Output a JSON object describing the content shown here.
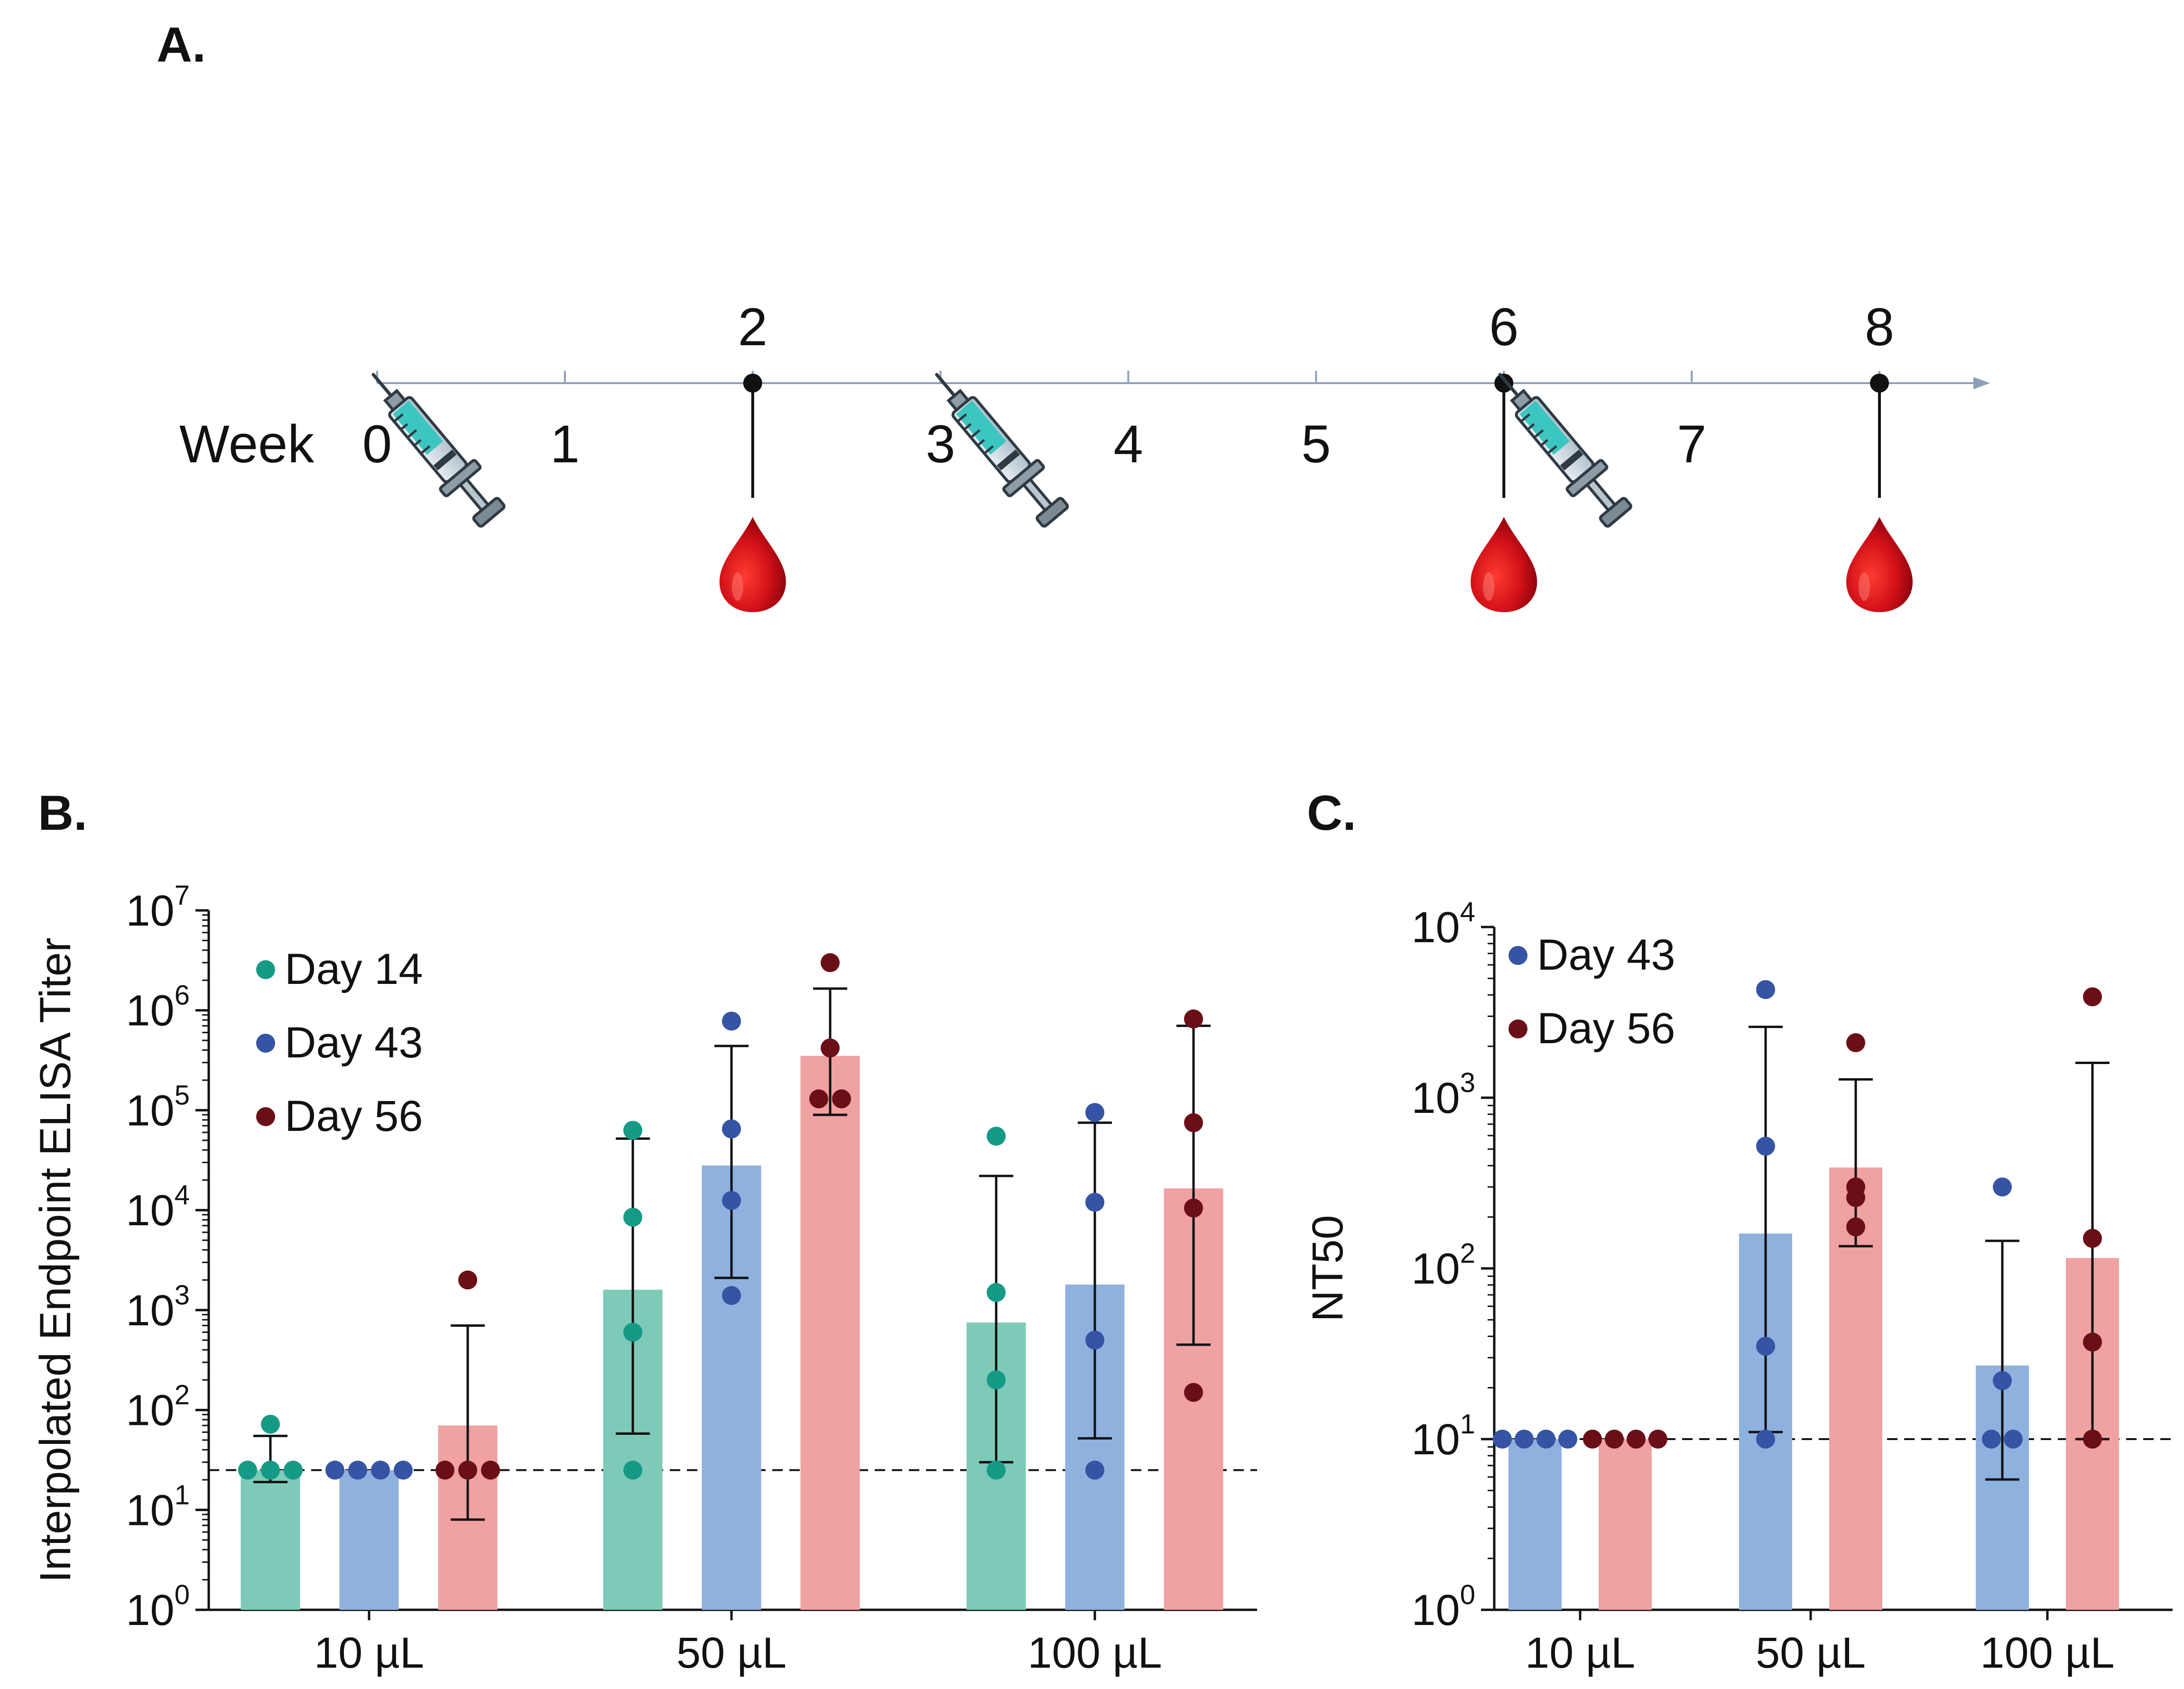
{
  "panels": {
    "A": {
      "label": "A.",
      "axis_label": "Week",
      "weeks": [
        "0",
        "1",
        "2",
        "3",
        "4",
        "5",
        "6",
        "7",
        "8"
      ],
      "injection_weeks": [
        0,
        3,
        6
      ],
      "bleed_weeks": [
        2,
        6,
        8
      ],
      "marked_weeks": [
        2,
        6,
        8
      ],
      "marked_labels": [
        "2",
        "6",
        "8"
      ],
      "icons": {
        "injection": "syringe-icon",
        "bleed": "blood-drop-icon"
      }
    },
    "B": {
      "label": "B."
    },
    "C": {
      "label": "C."
    }
  },
  "colors": {
    "day14_point": "#159A86",
    "day14_bar": "#7DCAB8",
    "day43_point": "#3554A5",
    "day43_bar": "#8FB1DD",
    "day56_point": "#6B0F17",
    "day56_bar": "#F0A1A1",
    "axis": "#111111",
    "timeline": "#8CA0B8",
    "blood": "#C41018"
  },
  "chart_data": [
    {
      "id": "B",
      "type": "bar",
      "yscale": "log",
      "ylabel": "Interpolated Endpoint ELISA Titer",
      "ylim": [
        1,
        10000000
      ],
      "yticks": [
        {
          "base": "10",
          "exp": "0"
        },
        {
          "base": "10",
          "exp": "1"
        },
        {
          "base": "10",
          "exp": "2"
        },
        {
          "base": "10",
          "exp": "3"
        },
        {
          "base": "10",
          "exp": "4"
        },
        {
          "base": "10",
          "exp": "5"
        },
        {
          "base": "10",
          "exp": "6"
        },
        {
          "base": "10",
          "exp": "7"
        }
      ],
      "categories": [
        "10 µL",
        "50 µL",
        "100 µL"
      ],
      "dashed_line": 25,
      "legend": [
        "Day 14",
        "Day 43",
        "Day 56"
      ],
      "legend_position": "top-left",
      "series": [
        {
          "name": "Day 14",
          "color_key": "day14",
          "bars": [
            25,
            1600,
            750
          ],
          "errors": [
            [
              19,
              55
            ],
            [
              58,
              52000
            ],
            [
              30,
              22000
            ]
          ],
          "points": [
            [
              25,
              25,
              25,
              72
            ],
            [
              25,
              600,
              8500,
              63000
            ],
            [
              25,
              200,
              1500,
              55000
            ]
          ]
        },
        {
          "name": "Day 43",
          "color_key": "day43",
          "bars": [
            25,
            28000,
            1800
          ],
          "errors": [
            [
              25,
              25
            ],
            [
              2100,
              440000
            ],
            [
              52,
              75000
            ]
          ],
          "points": [
            [
              25,
              25,
              25,
              25
            ],
            [
              1400,
              12500,
              65000,
              780000
            ],
            [
              25,
              500,
              12000,
              95000
            ]
          ]
        },
        {
          "name": "Day 56",
          "color_key": "day56",
          "bars": [
            70,
            350000,
            16500
          ],
          "errors": [
            [
              8,
              700
            ],
            [
              90000,
              1650000
            ],
            [
              450,
              700000
            ]
          ],
          "points": [
            [
              25,
              25,
              25,
              2000
            ],
            [
              130000,
              130000,
              420000,
              3000000
            ],
            [
              150,
              10500,
              75000,
              820000
            ]
          ]
        }
      ]
    },
    {
      "id": "C",
      "type": "bar",
      "yscale": "log",
      "ylabel": "NT50",
      "ylim": [
        1,
        10000
      ],
      "yticks": [
        {
          "base": "10",
          "exp": "0"
        },
        {
          "base": "10",
          "exp": "1"
        },
        {
          "base": "10",
          "exp": "2"
        },
        {
          "base": "10",
          "exp": "3"
        },
        {
          "base": "10",
          "exp": "4"
        }
      ],
      "categories": [
        "10 µL",
        "50 µL",
        "100 µL"
      ],
      "dashed_line": 10,
      "legend": [
        "Day 43",
        "Day 56"
      ],
      "legend_position": "top-left",
      "series": [
        {
          "name": "Day 43",
          "color_key": "day43",
          "bars": [
            10,
            160,
            27
          ],
          "errors": [
            [
              10,
              10
            ],
            [
              11,
              2600
            ],
            [
              5.8,
              145
            ]
          ],
          "points": [
            [
              10,
              10,
              10,
              10
            ],
            [
              10,
              35,
              520,
              4300
            ],
            [
              10,
              10,
              22,
              300
            ]
          ]
        },
        {
          "name": "Day 56",
          "color_key": "day56",
          "bars": [
            10,
            390,
            115
          ],
          "errors": [
            [
              10,
              10
            ],
            [
              135,
              1280
            ],
            [
              10,
              1600
            ]
          ],
          "points": [
            [
              10,
              10,
              10,
              10
            ],
            [
              175,
              260,
              300,
              2100
            ],
            [
              10,
              37,
              150,
              3900
            ]
          ]
        }
      ]
    }
  ]
}
